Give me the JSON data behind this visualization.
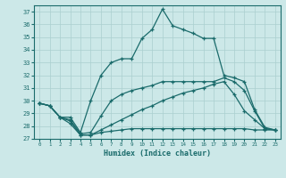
{
  "xlabel": "Humidex (Indice chaleur)",
  "background_color": "#cce8e8",
  "grid_color": "#aacfcf",
  "line_color": "#1a6b6b",
  "xlim": [
    -0.5,
    23.5
  ],
  "ylim": [
    27,
    37.5
  ],
  "yticks": [
    27,
    28,
    29,
    30,
    31,
    32,
    33,
    34,
    35,
    36,
    37
  ],
  "xticks": [
    0,
    1,
    2,
    3,
    4,
    5,
    6,
    7,
    8,
    9,
    10,
    11,
    12,
    13,
    14,
    15,
    16,
    17,
    18,
    19,
    20,
    21,
    22,
    23
  ],
  "curves": [
    {
      "x": [
        0,
        1,
        2,
        3,
        4,
        5,
        6,
        7,
        8,
        9,
        10,
        11,
        12,
        13,
        14,
        15,
        16,
        17,
        18,
        19,
        20,
        21,
        22,
        23
      ],
      "y": [
        29.8,
        29.6,
        28.7,
        28.7,
        27.5,
        30.0,
        32.0,
        33.0,
        33.3,
        33.3,
        34.9,
        35.6,
        37.2,
        35.9,
        35.6,
        35.3,
        34.9,
        34.9,
        32.0,
        31.8,
        31.5,
        29.3,
        27.9,
        27.7
      ]
    },
    {
      "x": [
        0,
        1,
        2,
        3,
        4,
        5,
        6,
        7,
        8,
        9,
        10,
        11,
        12,
        13,
        14,
        15,
        16,
        17,
        18,
        19,
        20,
        21,
        22,
        23
      ],
      "y": [
        29.8,
        29.6,
        28.7,
        28.5,
        27.4,
        27.5,
        28.8,
        30.0,
        30.5,
        30.8,
        31.0,
        31.2,
        31.5,
        31.5,
        31.5,
        31.5,
        31.5,
        31.5,
        31.8,
        31.5,
        30.8,
        29.2,
        27.8,
        27.7
      ]
    },
    {
      "x": [
        0,
        1,
        2,
        3,
        4,
        5,
        6,
        7,
        8,
        9,
        10,
        11,
        12,
        13,
        14,
        15,
        16,
        17,
        18,
        19,
        20,
        21,
        22,
        23
      ],
      "y": [
        29.8,
        29.6,
        28.7,
        28.4,
        27.3,
        27.3,
        27.7,
        28.1,
        28.5,
        28.9,
        29.3,
        29.6,
        30.0,
        30.3,
        30.6,
        30.8,
        31.0,
        31.3,
        31.5,
        30.5,
        29.2,
        28.5,
        27.8,
        27.7
      ]
    },
    {
      "x": [
        0,
        1,
        2,
        3,
        4,
        5,
        6,
        7,
        8,
        9,
        10,
        11,
        12,
        13,
        14,
        15,
        16,
        17,
        18,
        19,
        20,
        21,
        22,
        23
      ],
      "y": [
        29.8,
        29.6,
        28.7,
        28.2,
        27.3,
        27.3,
        27.5,
        27.6,
        27.7,
        27.8,
        27.8,
        27.8,
        27.8,
        27.8,
        27.8,
        27.8,
        27.8,
        27.8,
        27.8,
        27.8,
        27.8,
        27.7,
        27.7,
        27.7
      ]
    }
  ]
}
